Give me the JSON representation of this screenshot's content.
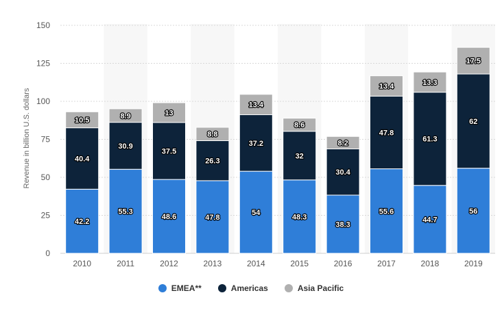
{
  "chart_data": {
    "type": "bar",
    "stacked": true,
    "categories": [
      "2010",
      "2011",
      "2012",
      "2013",
      "2014",
      "2015",
      "2016",
      "2017",
      "2018",
      "2019"
    ],
    "series": [
      {
        "name": "EMEA**",
        "color": "#2f7ed8",
        "values": [
          42.2,
          55.3,
          48.6,
          47.8,
          54,
          48.3,
          38.3,
          55.6,
          44.7,
          56
        ]
      },
      {
        "name": "Americas",
        "color": "#0d233a",
        "values": [
          40.4,
          30.9,
          37.5,
          26.3,
          37.2,
          32,
          30.4,
          47.8,
          61.3,
          62
        ]
      },
      {
        "name": "Asia Pacific",
        "color": "#b0b0b0",
        "values": [
          10.5,
          8.9,
          13,
          8.8,
          13.4,
          8.6,
          8.2,
          13.4,
          13.3,
          17.5
        ]
      }
    ],
    "ylabel": "Revenue in billion U.S. dollars",
    "xlabel": "",
    "title": "",
    "ylim": [
      0,
      150
    ],
    "yticks": [
      0,
      25,
      50,
      75,
      100,
      125,
      150
    ],
    "grid": true,
    "legend_position": "bottom-center"
  }
}
